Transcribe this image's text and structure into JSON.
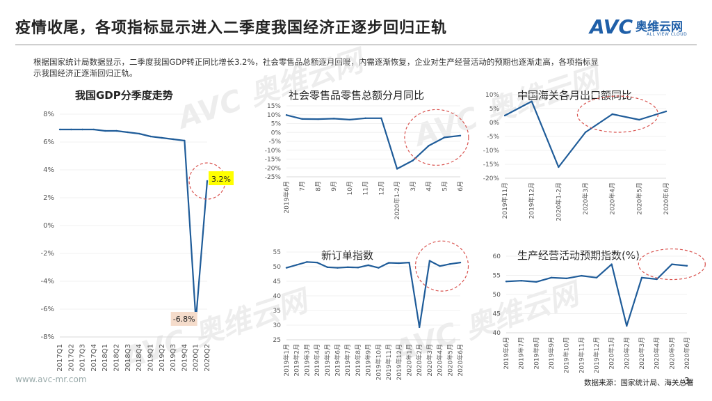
{
  "page": {
    "title": "疫情收尾，各项指标显示进入二季度我国经济正逐步回归正轨",
    "intro": "根据国家统计局数据显示，二季度我国GDP转正同比增长3.2%，社会零售品总额逐月回暖，内需逐渐恢复，企业对生产经营活动的预期也逐渐走高，各项指标显示我国经济正逐渐回归正轨。",
    "website": "www.avc-mr.com",
    "source": "数据来源：国家统计局、海关总署",
    "page_number": "3"
  },
  "logo": {
    "mark": "AVC",
    "cn": "奥维云网",
    "en": "ALL VIEW CLOUD"
  },
  "watermark": {
    "text": "AVC 奥维云网"
  },
  "colors": {
    "line": "#1f5c99",
    "highlight_circle": "#d9534f",
    "callout_yellow": "#ffff00",
    "callout_peach": "#f5dccb",
    "grid": "#e6e6e6"
  },
  "chart_data": [
    {
      "id": "gdp",
      "type": "line",
      "title": "我国GDP分季度走势",
      "x": [
        "2017Q1",
        "2017Q2",
        "2017Q3",
        "2017Q4",
        "2018Q1",
        "2018Q2",
        "2018Q3",
        "2018Q4",
        "2019Q1",
        "2019Q2",
        "2019Q3",
        "2019Q4",
        "2020Q1",
        "2020Q2"
      ],
      "values": [
        6.9,
        6.9,
        6.9,
        6.9,
        6.8,
        6.8,
        6.7,
        6.6,
        6.4,
        6.3,
        6.2,
        6.1,
        -6.8,
        3.2
      ],
      "yticks": [
        "8%",
        "6%",
        "4%",
        "2%",
        "0%",
        "-2%",
        "-4%",
        "-6%",
        "-8%"
      ],
      "ylim": [
        -8,
        8
      ],
      "annotations": [
        {
          "text": "3.2%",
          "style": "yellow"
        },
        {
          "text": "-6.8%",
          "style": "peach"
        }
      ]
    },
    {
      "id": "retail",
      "type": "line",
      "title": "社会零售品零售总额分月同比",
      "x": [
        "2019年6月",
        "7月",
        "8月",
        "9月",
        "10月",
        "11月",
        "12月",
        "2020年1-2月",
        "3月",
        "4月",
        "5月",
        "6月"
      ],
      "values": [
        9.8,
        7.6,
        7.5,
        7.8,
        7.2,
        8.0,
        8.0,
        -20.5,
        -15.8,
        -7.5,
        -2.8,
        -1.8
      ],
      "yticks": [
        "15%",
        "10%",
        "5%",
        "0%",
        "-5%",
        "-10%",
        "-15%",
        "-20%",
        "-25%"
      ],
      "ylim": [
        -25,
        15
      ]
    },
    {
      "id": "export",
      "type": "line",
      "title": "中国海关各月出口额同比",
      "x": [
        "2019年11月",
        "2019年12月",
        "2020年1-2月",
        "2020年3月",
        "2020年4月",
        "2020年5月",
        "2020年6月"
      ],
      "values": [
        2.5,
        7.6,
        -16.0,
        -3.5,
        3.0,
        1.0,
        4.0
      ],
      "yticks": [
        "10%",
        "5%",
        "0%",
        "-5%",
        "-10%",
        "-15%",
        "-20%"
      ],
      "ylim": [
        -20,
        10
      ]
    },
    {
      "id": "orders",
      "type": "line",
      "title": "新订单指数",
      "x": [
        "2019年1月",
        "2019年2月",
        "2019年3月",
        "2019年4月",
        "2019年5月",
        "2019年6月",
        "2019年7月",
        "2019年8月",
        "2019年9月",
        "2019年10月",
        "2019年11月",
        "2019年12月",
        "2020年1月",
        "2020年2月",
        "2020年3月",
        "2020年4月",
        "2020年5月",
        "2020年6月"
      ],
      "values": [
        49.6,
        50.6,
        51.6,
        51.4,
        49.8,
        49.6,
        49.8,
        49.7,
        50.5,
        49.6,
        51.3,
        51.2,
        51.4,
        29.3,
        52.0,
        50.2,
        50.9,
        51.4
      ],
      "yticks": [
        "55",
        "50",
        "45",
        "40",
        "35",
        "30",
        "25"
      ],
      "ylim": [
        25,
        55
      ]
    },
    {
      "id": "expect",
      "type": "line",
      "title": "生产经营活动预期指数(%)",
      "x": [
        "2019年6月",
        "2019年7月",
        "2019年8月",
        "2019年9月",
        "2019年10月",
        "2019年11月",
        "2019年12月",
        "2020年1月",
        "2020年2月",
        "2020年3月",
        "2020年4月",
        "2020年5月",
        "2020年6月"
      ],
      "values": [
        53.4,
        53.6,
        53.3,
        54.4,
        54.2,
        54.9,
        54.4,
        57.9,
        41.8,
        54.4,
        54.0,
        57.9,
        57.5
      ],
      "yticks": [
        "60",
        "55",
        "50",
        "45",
        "40"
      ],
      "ylim": [
        40,
        60
      ]
    }
  ]
}
